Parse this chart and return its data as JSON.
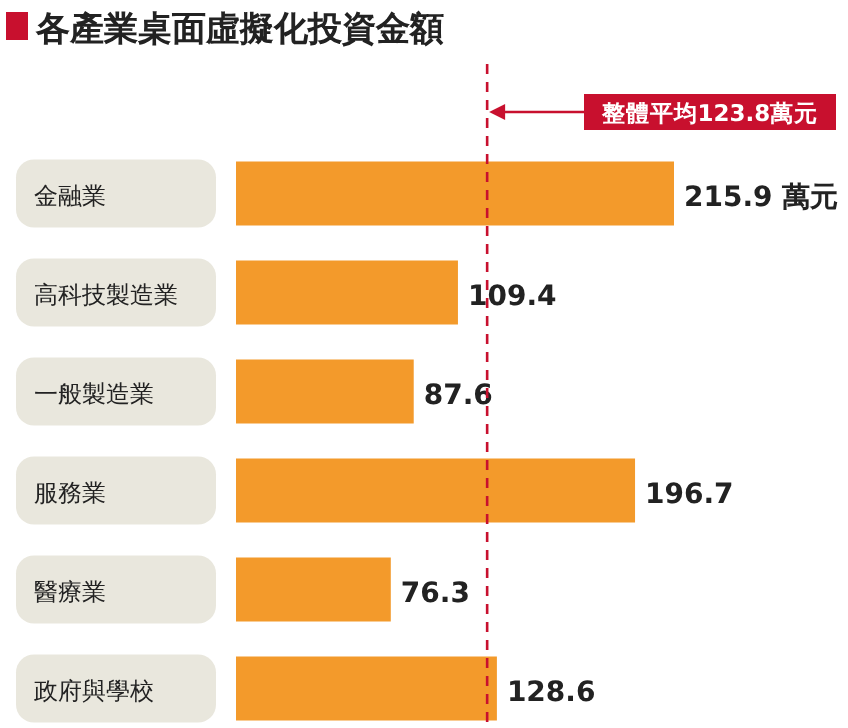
{
  "chart_data": {
    "type": "bar",
    "orientation": "horizontal",
    "title": "各產業桌面虛擬化投資金額",
    "categories": [
      "金融業",
      "高科技製造業",
      "一般製造業",
      "服務業",
      "醫療業",
      "政府與學校"
    ],
    "values": [
      215.9,
      109.4,
      87.6,
      196.7,
      76.3,
      128.6
    ],
    "color": "#f39a2b",
    "value_labels": [
      "215.9 萬元",
      "109.4",
      "87.6",
      "196.7",
      "76.3",
      "128.6"
    ],
    "ref_lines": [
      {
        "axis": "x",
        "value": 123.8,
        "label": "整體平均123.8萬元",
        "color": "#c8102e",
        "line_style": "dashed"
      }
    ]
  }
}
